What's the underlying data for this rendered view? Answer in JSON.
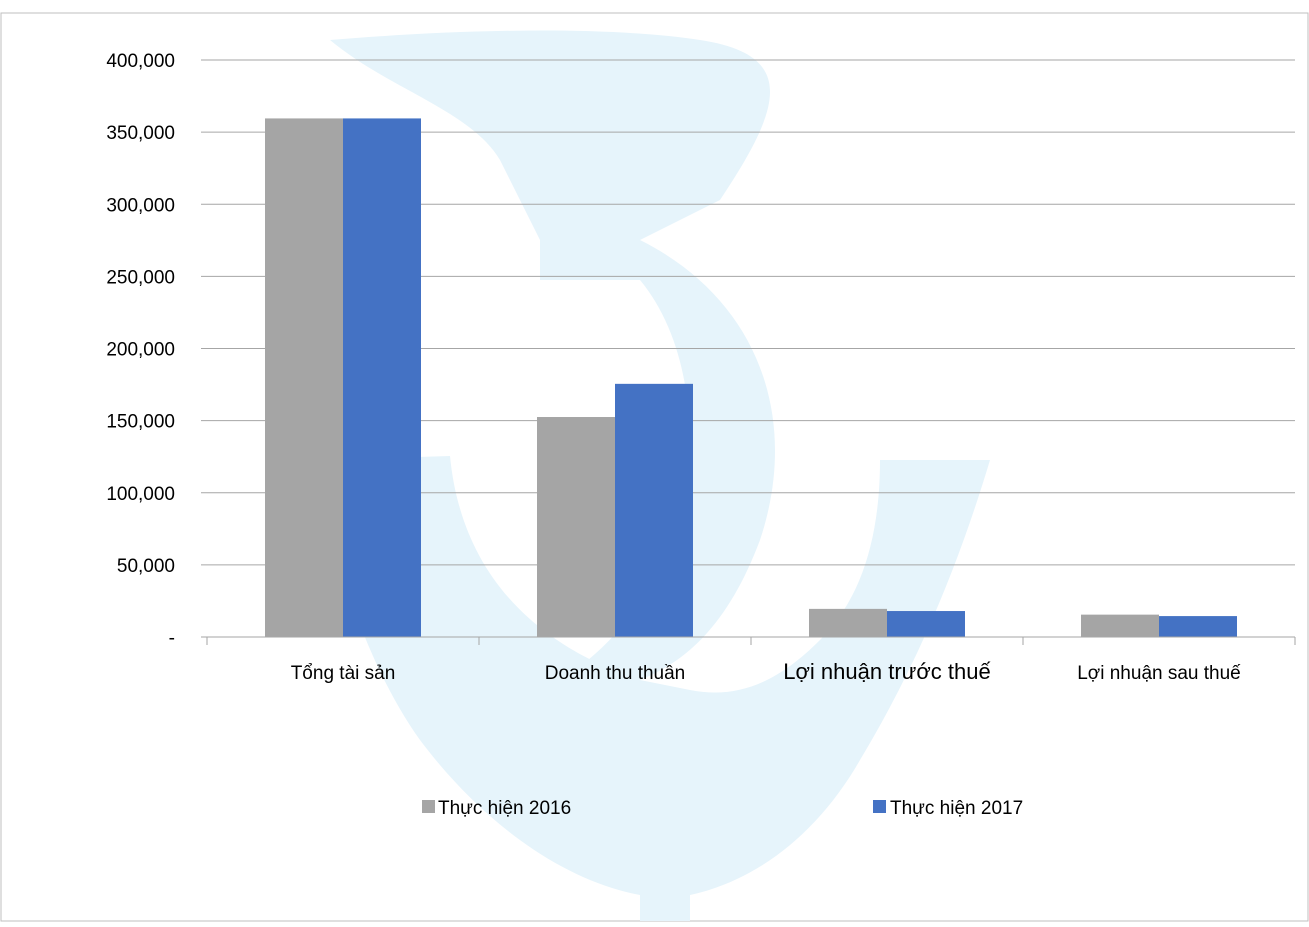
{
  "chart_data": {
    "type": "bar",
    "categories": [
      "Tổng tài sản",
      "Doanh thu thuần",
      "Lợi nhuận trước thuế",
      "Lợi nhuận sau thuế"
    ],
    "series": [
      {
        "name": "Thực hiện 2016",
        "color": "#a5a5a5",
        "values": [
          359500,
          152500,
          19500,
          15500
        ]
      },
      {
        "name": "Thực hiện 2017",
        "color": "#4472c4",
        "values": [
          359500,
          175500,
          18000,
          14500
        ]
      }
    ],
    "yticks": [
      {
        "value": 0,
        "label": "-"
      },
      {
        "value": 50000,
        "label": "50,000"
      },
      {
        "value": 100000,
        "label": "100,000"
      },
      {
        "value": 150000,
        "label": "150,000"
      },
      {
        "value": 200000,
        "label": "200,000"
      },
      {
        "value": 250000,
        "label": "250,000"
      },
      {
        "value": 300000,
        "label": "300,000"
      },
      {
        "value": 350000,
        "label": "350,000"
      },
      {
        "value": 400000,
        "label": "400,000"
      }
    ],
    "ylim": [
      0,
      400000
    ],
    "grid": true,
    "legend_position": "bottom",
    "watermark_color": "#e6f4fb"
  }
}
